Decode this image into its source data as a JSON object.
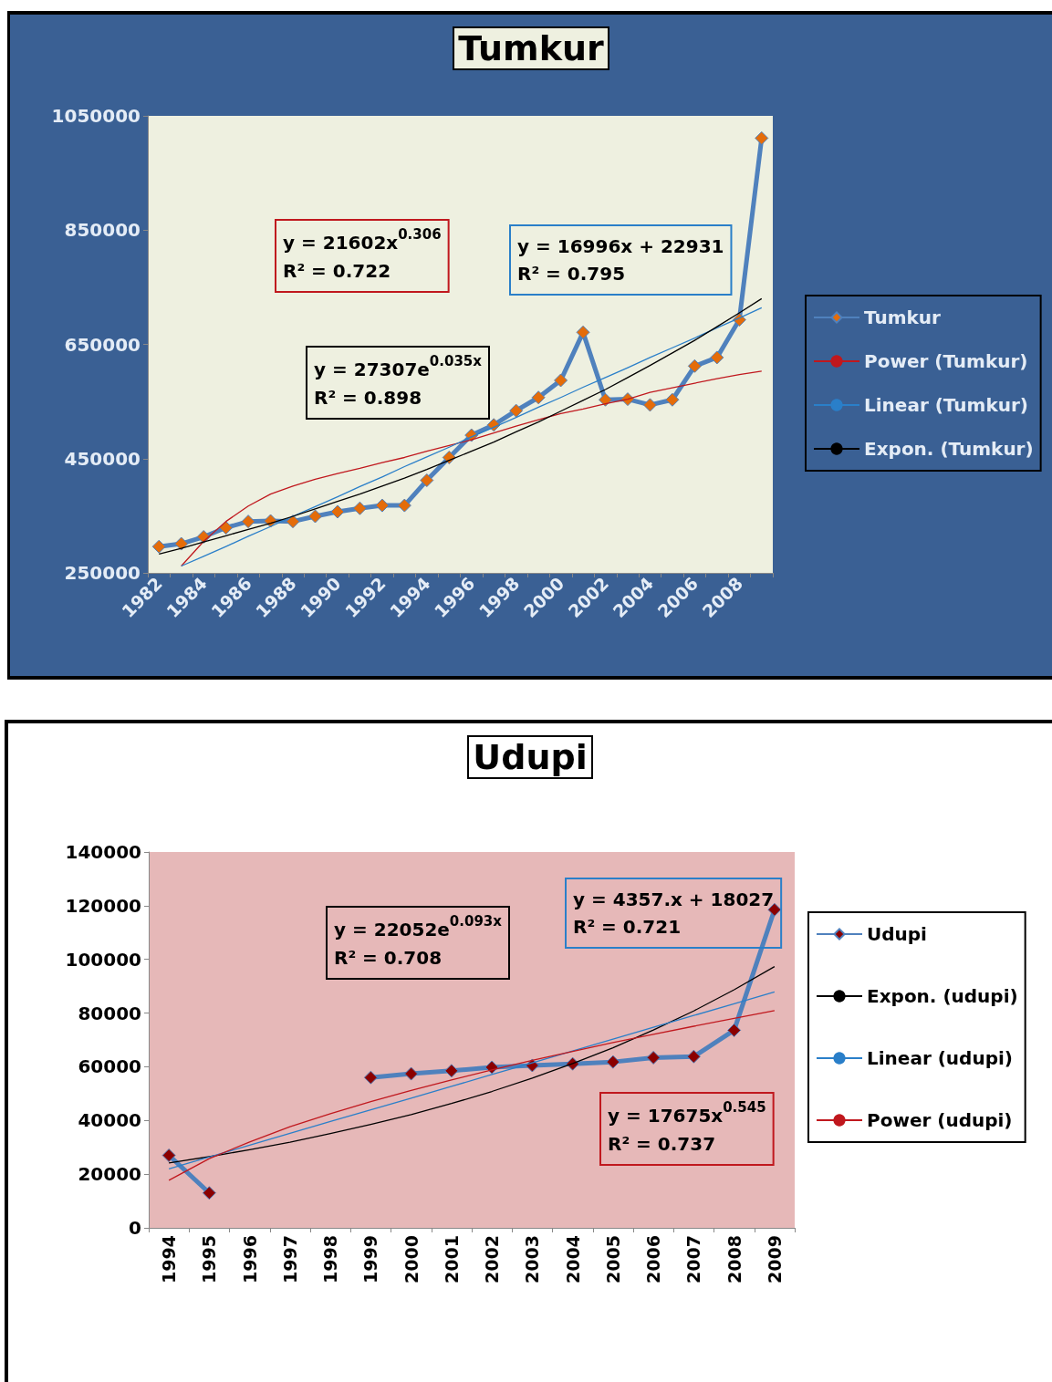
{
  "chart_data": [
    {
      "type": "line",
      "title": "Tumkur",
      "categories": [
        "1982",
        null,
        "1984",
        null,
        "1986",
        null,
        "1988",
        null,
        "1990",
        null,
        "1992",
        null,
        "1994",
        null,
        "1996",
        null,
        "1998",
        null,
        "2000",
        null,
        "2002",
        null,
        "2004",
        null,
        "2006",
        null,
        "2008",
        null
      ],
      "series": [
        {
          "name": "Tumkur",
          "color": "#4f81bd",
          "marker": "diamond",
          "values": [
            296000,
            301000,
            313000,
            329000,
            340000,
            341000,
            340000,
            349000,
            357000,
            363000,
            368000,
            368000,
            412000,
            452000,
            491000,
            509000,
            534000,
            557000,
            587000,
            671000,
            553000,
            554000,
            544000,
            553000,
            612000,
            627000,
            693000,
            1011000
          ]
        },
        {
          "name": "Power (Tumkur)",
          "color": "#c0181e",
          "marker": "none",
          "values": [
            null,
            262000,
            305000,
            340000,
            367000,
            388000,
            402000,
            414000,
            424000,
            433000,
            443000,
            452000,
            463000,
            473000,
            483000,
            495000,
            507000,
            518000,
            529000,
            537000,
            546000,
            554000,
            566000,
            574000,
            582000,
            590000,
            597000,
            603000
          ]
        },
        {
          "name": "Linear (Tumkur)",
          "color": "#2a7fc9",
          "marker": "none",
          "values": [
            null,
            262000,
            279000,
            296000,
            314000,
            331000,
            349000,
            366000,
            383000,
            401000,
            418000,
            436000,
            453000,
            470000,
            488000,
            505000,
            522000,
            540000,
            557000,
            575000,
            592000,
            609000,
            627000,
            644000,
            661000,
            679000,
            696000,
            714000
          ]
        },
        {
          "name": "Expon. (Tumkur)",
          "color": "#000000",
          "marker": "none",
          "values": [
            283000,
            293000,
            304000,
            315000,
            326000,
            337000,
            349000,
            362000,
            375000,
            388000,
            402000,
            416000,
            431000,
            447000,
            463000,
            479000,
            497000,
            514000,
            533000,
            552000,
            571000,
            592000,
            613000,
            635000,
            657000,
            681000,
            705000,
            730000
          ]
        }
      ],
      "ylim": [
        250000,
        1050000
      ],
      "yticks": [
        250000,
        450000,
        650000,
        850000,
        1050000
      ],
      "grid": false,
      "legend": "right",
      "annotations": [
        "y = 21602x$^{0.306}$\nR² = 0.722",
        "y = 16996x + 22931\nR² = 0.795",
        "y = 27307e$^{0.035x}$\nR² = 0.898"
      ]
    },
    {
      "type": "line",
      "title": "Udupi",
      "categories": [
        "1994",
        "1995",
        "1996",
        "1997",
        "1998",
        "1999",
        "2000",
        "2001",
        "2002",
        "2003",
        "2004",
        "2005",
        "2006",
        "2007",
        "2008",
        "2009"
      ],
      "series": [
        {
          "name": "Udupi",
          "color": "#4f81bd",
          "marker": "diamond",
          "values": [
            27000,
            13000,
            null,
            null,
            null,
            56000,
            57400,
            58500,
            59800,
            60500,
            61100,
            61800,
            63400,
            63800,
            73600,
            118500
          ]
        },
        {
          "name": "Expon. (udupi)",
          "color": "#000000",
          "marker": "none",
          "values": [
            24200,
            26500,
            29100,
            31900,
            35100,
            38500,
            42200,
            46300,
            50800,
            55800,
            61200,
            67100,
            73700,
            80800,
            88700,
            97300
          ]
        },
        {
          "name": "Linear (udupi)",
          "color": "#2a7fc9",
          "marker": "none",
          "values": [
            22000,
            26400,
            30800,
            35200,
            39600,
            44000,
            48300,
            52700,
            57100,
            61500,
            65900,
            70300,
            74700,
            79100,
            83500,
            87900
          ]
        },
        {
          "name": "Power (udupi)",
          "color": "#c0181e",
          "marker": "none",
          "values": [
            17700,
            25800,
            32000,
            37700,
            42500,
            47000,
            51200,
            55100,
            58800,
            62400,
            65700,
            69000,
            72100,
            75100,
            78000,
            80900
          ]
        }
      ],
      "ylim": [
        0,
        140000
      ],
      "yticks": [
        0,
        20000,
        40000,
        60000,
        80000,
        100000,
        120000,
        140000
      ],
      "grid": false,
      "legend": "right",
      "annotations": [
        "y = 22052e$^{0.093x}$\nR² = 0.708",
        "y = 4357.x + 18027\nR² = 0.721",
        "y = 17675x$^{0.545}$\nR² = 0.737"
      ]
    }
  ]
}
